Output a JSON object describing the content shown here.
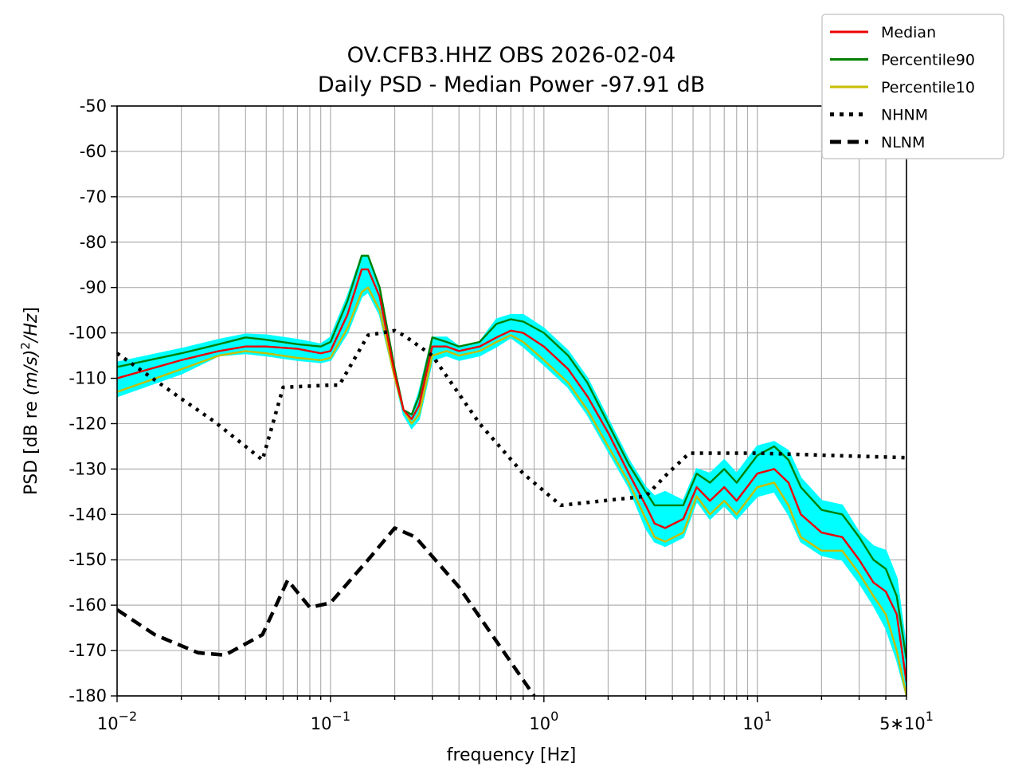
{
  "chart_data": {
    "type": "line",
    "title": "OV.CFB3.HHZ OBS 2026-02-04",
    "subtitle": "Daily PSD - Median Power -97.91 dB",
    "xlabel": "frequency [Hz]",
    "ylabel_parts": [
      "PSD [dB re ",
      "(m/s)",
      "2",
      "/Hz",
      "]"
    ],
    "xscale": "log",
    "xlim": [
      0.01,
      50
    ],
    "ylim": [
      -180,
      -50
    ],
    "grid": true,
    "legend_placement": "top-right",
    "x_ticks": [
      {
        "value": 0.01,
        "base": "10",
        "exp": "−2"
      },
      {
        "value": 0.1,
        "base": "10",
        "exp": "−1"
      },
      {
        "value": 1,
        "base": "10",
        "exp": "0"
      },
      {
        "value": 10,
        "base": "10",
        "exp": "1"
      },
      {
        "value": 50,
        "base": "5∗10",
        "exp": "1"
      }
    ],
    "y_ticks": [
      {
        "value": -50,
        "label": "-50"
      },
      {
        "value": -60,
        "label": "-60"
      },
      {
        "value": -70,
        "label": "-70"
      },
      {
        "value": -80,
        "label": "-80"
      },
      {
        "value": -90,
        "label": "-90"
      },
      {
        "value": -100,
        "label": "-100"
      },
      {
        "value": -110,
        "label": "-110"
      },
      {
        "value": -120,
        "label": "-120"
      },
      {
        "value": -130,
        "label": "-130"
      },
      {
        "value": -140,
        "label": "-140"
      },
      {
        "value": -150,
        "label": "-150"
      },
      {
        "value": -160,
        "label": "-160"
      },
      {
        "value": -170,
        "label": "-170"
      },
      {
        "value": -180,
        "label": "-180"
      }
    ],
    "envelope": {
      "color": "#00ffff",
      "upper": [
        [
          0.01,
          -106.5
        ],
        [
          0.02,
          -103.5
        ],
        [
          0.03,
          -101.5
        ],
        [
          0.04,
          -100.3
        ],
        [
          0.05,
          -100.5
        ],
        [
          0.07,
          -101.5
        ],
        [
          0.09,
          -102.5
        ],
        [
          0.1,
          -101
        ],
        [
          0.12,
          -92
        ],
        [
          0.14,
          -83
        ],
        [
          0.15,
          -83
        ],
        [
          0.17,
          -90
        ],
        [
          0.2,
          -108
        ],
        [
          0.22,
          -117
        ],
        [
          0.24,
          -118
        ],
        [
          0.26,
          -113
        ],
        [
          0.3,
          -101
        ],
        [
          0.35,
          -101
        ],
        [
          0.4,
          -103
        ],
        [
          0.5,
          -102
        ],
        [
          0.6,
          -97
        ],
        [
          0.7,
          -96
        ],
        [
          0.8,
          -96
        ],
        [
          1.0,
          -99
        ],
        [
          1.3,
          -104
        ],
        [
          1.6,
          -110
        ],
        [
          2.0,
          -119
        ],
        [
          2.5,
          -128
        ],
        [
          3.0,
          -134
        ],
        [
          3.3,
          -136
        ],
        [
          3.7,
          -135
        ],
        [
          4.5,
          -137
        ],
        [
          5.2,
          -130
        ],
        [
          6,
          -131
        ],
        [
          7,
          -128
        ],
        [
          8,
          -131
        ],
        [
          10,
          -125
        ],
        [
          12,
          -124
        ],
        [
          14,
          -126
        ],
        [
          16,
          -132
        ],
        [
          20,
          -137
        ],
        [
          25,
          -138
        ],
        [
          30,
          -144
        ],
        [
          35,
          -147
        ],
        [
          40,
          -148
        ],
        [
          45,
          -154
        ],
        [
          50,
          -170
        ]
      ],
      "lower": [
        [
          0.01,
          -114
        ],
        [
          0.02,
          -109
        ],
        [
          0.03,
          -105
        ],
        [
          0.04,
          -104.5
        ],
        [
          0.05,
          -105
        ],
        [
          0.07,
          -106
        ],
        [
          0.09,
          -106.5
        ],
        [
          0.1,
          -106
        ],
        [
          0.12,
          -100
        ],
        [
          0.14,
          -92
        ],
        [
          0.15,
          -91
        ],
        [
          0.17,
          -96
        ],
        [
          0.2,
          -110
        ],
        [
          0.22,
          -118
        ],
        [
          0.24,
          -121
        ],
        [
          0.26,
          -119
        ],
        [
          0.3,
          -106
        ],
        [
          0.35,
          -105
        ],
        [
          0.4,
          -106
        ],
        [
          0.5,
          -105
        ],
        [
          0.6,
          -103
        ],
        [
          0.7,
          -101
        ],
        [
          0.8,
          -103
        ],
        [
          1.0,
          -107
        ],
        [
          1.3,
          -112
        ],
        [
          1.6,
          -118
        ],
        [
          2.0,
          -126
        ],
        [
          2.5,
          -134
        ],
        [
          3.0,
          -143
        ],
        [
          3.3,
          -146
        ],
        [
          3.7,
          -147
        ],
        [
          4.5,
          -145
        ],
        [
          5.2,
          -137
        ],
        [
          6,
          -141
        ],
        [
          7,
          -138
        ],
        [
          8,
          -141
        ],
        [
          10,
          -136
        ],
        [
          12,
          -135
        ],
        [
          14,
          -140
        ],
        [
          16,
          -146
        ],
        [
          20,
          -149
        ],
        [
          25,
          -150
        ],
        [
          30,
          -155
        ],
        [
          35,
          -160
        ],
        [
          40,
          -165
        ],
        [
          45,
          -172
        ],
        [
          50,
          -180
        ]
      ]
    },
    "series": [
      {
        "name": "Median",
        "color": "#ee0000",
        "style": "solid",
        "points": [
          [
            0.01,
            -110
          ],
          [
            0.02,
            -106
          ],
          [
            0.03,
            -104
          ],
          [
            0.04,
            -103
          ],
          [
            0.05,
            -103
          ],
          [
            0.07,
            -103.5
          ],
          [
            0.09,
            -104.5
          ],
          [
            0.1,
            -104
          ],
          [
            0.12,
            -96
          ],
          [
            0.14,
            -86
          ],
          [
            0.15,
            -86
          ],
          [
            0.17,
            -92
          ],
          [
            0.2,
            -109
          ],
          [
            0.22,
            -117
          ],
          [
            0.24,
            -119
          ],
          [
            0.26,
            -116
          ],
          [
            0.3,
            -103
          ],
          [
            0.35,
            -103
          ],
          [
            0.4,
            -104
          ],
          [
            0.5,
            -103
          ],
          [
            0.6,
            -101
          ],
          [
            0.7,
            -99.5
          ],
          [
            0.8,
            -100
          ],
          [
            1.0,
            -103
          ],
          [
            1.3,
            -108
          ],
          [
            1.6,
            -114
          ],
          [
            2.0,
            -122
          ],
          [
            2.5,
            -131
          ],
          [
            3.0,
            -138
          ],
          [
            3.3,
            -142
          ],
          [
            3.7,
            -143
          ],
          [
            4.5,
            -141
          ],
          [
            5.2,
            -134
          ],
          [
            6,
            -137
          ],
          [
            7,
            -134
          ],
          [
            8,
            -137
          ],
          [
            10,
            -131
          ],
          [
            12,
            -130
          ],
          [
            14,
            -133
          ],
          [
            16,
            -140
          ],
          [
            20,
            -144
          ],
          [
            25,
            -145
          ],
          [
            30,
            -150
          ],
          [
            35,
            -155
          ],
          [
            40,
            -157
          ],
          [
            45,
            -162
          ],
          [
            50,
            -177
          ]
        ]
      },
      {
        "name": "Percentile90",
        "color": "#008000",
        "style": "solid",
        "points": [
          [
            0.01,
            -107.5
          ],
          [
            0.02,
            -104.5
          ],
          [
            0.03,
            -102.5
          ],
          [
            0.04,
            -101
          ],
          [
            0.05,
            -101.5
          ],
          [
            0.07,
            -102.5
          ],
          [
            0.09,
            -103
          ],
          [
            0.1,
            -102
          ],
          [
            0.12,
            -93
          ],
          [
            0.14,
            -83
          ],
          [
            0.15,
            -83
          ],
          [
            0.17,
            -90
          ],
          [
            0.2,
            -108
          ],
          [
            0.22,
            -117
          ],
          [
            0.24,
            -118
          ],
          [
            0.26,
            -114
          ],
          [
            0.3,
            -101
          ],
          [
            0.35,
            -102
          ],
          [
            0.4,
            -103
          ],
          [
            0.5,
            -102
          ],
          [
            0.6,
            -98
          ],
          [
            0.7,
            -97
          ],
          [
            0.8,
            -97.5
          ],
          [
            1.0,
            -100
          ],
          [
            1.3,
            -105
          ],
          [
            1.6,
            -111
          ],
          [
            2.0,
            -120
          ],
          [
            2.5,
            -129
          ],
          [
            3.0,
            -135
          ],
          [
            3.3,
            -138
          ],
          [
            3.7,
            -138
          ],
          [
            4.5,
            -138
          ],
          [
            5.2,
            -131
          ],
          [
            6,
            -133
          ],
          [
            7,
            -130
          ],
          [
            8,
            -133
          ],
          [
            10,
            -127
          ],
          [
            12,
            -125
          ],
          [
            14,
            -128
          ],
          [
            16,
            -134
          ],
          [
            20,
            -139
          ],
          [
            25,
            -140
          ],
          [
            30,
            -145
          ],
          [
            35,
            -150
          ],
          [
            40,
            -152
          ],
          [
            45,
            -158
          ],
          [
            50,
            -172
          ]
        ]
      },
      {
        "name": "Percentile10",
        "color": "#c8be00",
        "style": "solid",
        "points": [
          [
            0.01,
            -113
          ],
          [
            0.02,
            -108
          ],
          [
            0.03,
            -105
          ],
          [
            0.04,
            -104
          ],
          [
            0.05,
            -104.5
          ],
          [
            0.07,
            -105.5
          ],
          [
            0.09,
            -106
          ],
          [
            0.1,
            -105.5
          ],
          [
            0.12,
            -99
          ],
          [
            0.14,
            -91
          ],
          [
            0.15,
            -90
          ],
          [
            0.17,
            -95
          ],
          [
            0.2,
            -110
          ],
          [
            0.22,
            -117
          ],
          [
            0.24,
            -120
          ],
          [
            0.26,
            -118
          ],
          [
            0.3,
            -105
          ],
          [
            0.35,
            -104
          ],
          [
            0.4,
            -105
          ],
          [
            0.5,
            -104
          ],
          [
            0.6,
            -102
          ],
          [
            0.7,
            -100.5
          ],
          [
            0.8,
            -102
          ],
          [
            1.0,
            -106
          ],
          [
            1.3,
            -111
          ],
          [
            1.6,
            -117
          ],
          [
            2.0,
            -125
          ],
          [
            2.5,
            -133
          ],
          [
            3.0,
            -141
          ],
          [
            3.3,
            -145
          ],
          [
            3.7,
            -146
          ],
          [
            4.5,
            -144
          ],
          [
            5.2,
            -136
          ],
          [
            6,
            -140
          ],
          [
            7,
            -137
          ],
          [
            8,
            -140
          ],
          [
            10,
            -134
          ],
          [
            12,
            -133
          ],
          [
            14,
            -138
          ],
          [
            16,
            -145
          ],
          [
            20,
            -148
          ],
          [
            25,
            -148
          ],
          [
            30,
            -153
          ],
          [
            35,
            -158
          ],
          [
            40,
            -162
          ],
          [
            45,
            -170
          ],
          [
            50,
            -180
          ]
        ]
      },
      {
        "name": "NHNM",
        "color": "#000000",
        "style": "dotted",
        "points": [
          [
            0.01,
            -104.5
          ],
          [
            0.02,
            -114.5
          ],
          [
            0.0285,
            -119.5
          ],
          [
            0.048,
            -128
          ],
          [
            0.06,
            -112
          ],
          [
            0.1,
            -111.5
          ],
          [
            0.11,
            -111.5
          ],
          [
            0.15,
            -100.5
          ],
          [
            0.2,
            -99.5
          ],
          [
            0.22,
            -100.5
          ],
          [
            0.3,
            -105
          ],
          [
            0.5,
            -120
          ],
          [
            0.8,
            -131
          ],
          [
            1.2,
            -138
          ],
          [
            3.0,
            -136
          ],
          [
            3.8,
            -131
          ],
          [
            4.8,
            -126.5
          ],
          [
            10,
            -126.5
          ],
          [
            50,
            -127.5
          ]
        ]
      },
      {
        "name": "NLNM",
        "color": "#000000",
        "style": "dashed",
        "points": [
          [
            0.01,
            -161
          ],
          [
            0.015,
            -166.5
          ],
          [
            0.024,
            -170.5
          ],
          [
            0.032,
            -171
          ],
          [
            0.048,
            -166.5
          ],
          [
            0.063,
            -154.5
          ],
          [
            0.08,
            -160.5
          ],
          [
            0.1,
            -159.5
          ],
          [
            0.15,
            -150
          ],
          [
            0.2,
            -143
          ],
          [
            0.25,
            -145
          ],
          [
            0.4,
            -156
          ],
          [
            0.6,
            -168
          ],
          [
            0.9,
            -180
          ]
        ]
      }
    ]
  }
}
